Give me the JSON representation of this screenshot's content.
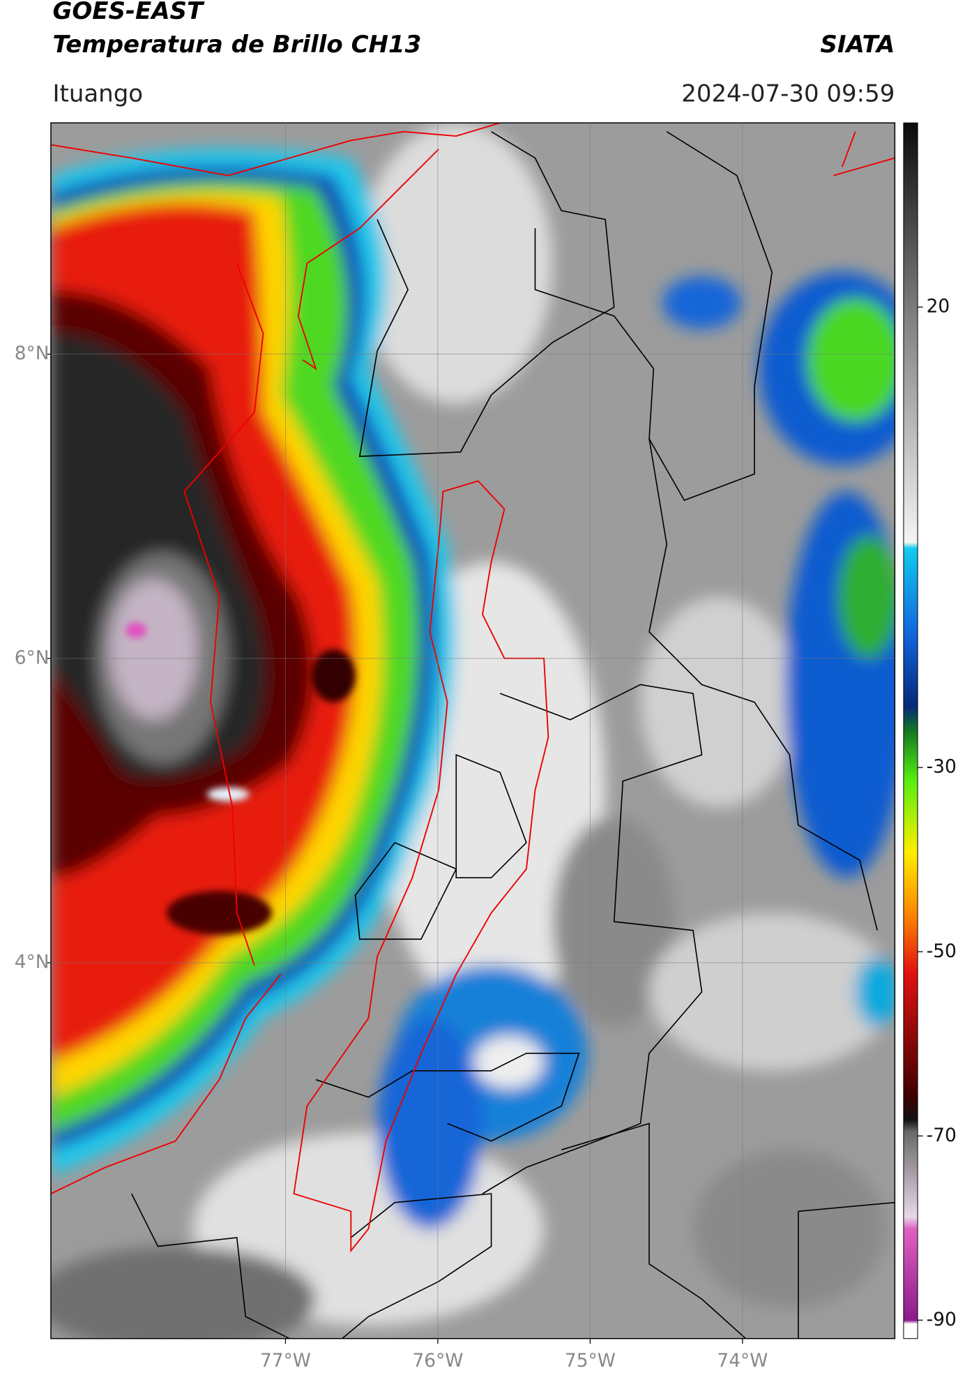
{
  "header": {
    "title": "GOES-EAST",
    "subtitle": "Temperatura de Brillo CH13",
    "source": "SIATA",
    "location": "Ituango",
    "datetime": "2024-07-30 09:59"
  },
  "map": {
    "lon_range": [
      -78.54,
      -73.0
    ],
    "lat_range": [
      1.53,
      9.52
    ],
    "lon_ticks": [
      {
        "value": -77,
        "label": "77°W"
      },
      {
        "value": -76,
        "label": "76°W"
      },
      {
        "value": -75,
        "label": "75°W"
      },
      {
        "value": -74,
        "label": "74°W"
      }
    ],
    "lat_ticks": [
      {
        "value": 8,
        "label": "8°N"
      },
      {
        "value": 6,
        "label": "6°N"
      },
      {
        "value": 4,
        "label": "4°N"
      }
    ]
  },
  "colorbar": {
    "range": [
      -92,
      40
    ],
    "ticks": [
      20,
      -30,
      -50,
      -70,
      -90
    ]
  }
}
